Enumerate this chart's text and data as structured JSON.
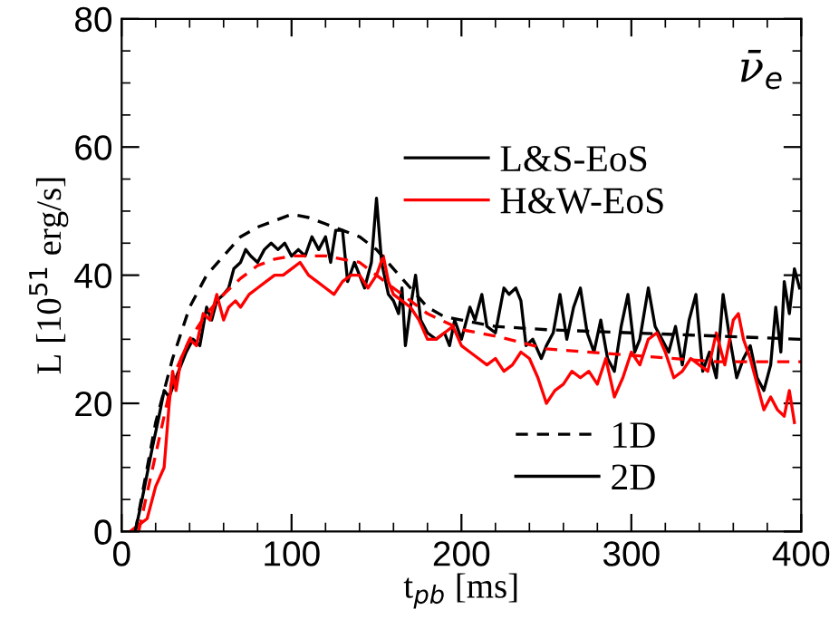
{
  "chart_data": {
    "type": "line",
    "xlabel": "t$_{pb}$ [ms]",
    "ylabel": "L [10$^{51}$ erg/s]",
    "xlim": [
      0,
      400
    ],
    "xticks": [
      0,
      100,
      200,
      300,
      400
    ],
    "ylim": [
      0,
      80
    ],
    "yticks": [
      0,
      20,
      40,
      60,
      80
    ],
    "grid": false,
    "legend": "right",
    "annotations": [
      "ν̄$_{e}$",
      "1D",
      "2D"
    ],
    "series": [
      {
        "name": "L&S-EoS",
        "color": "#000000",
        "line_style": "solid",
        "x": [
          8,
          12,
          18,
          22,
          25,
          28,
          32,
          38,
          42,
          46,
          50,
          53,
          56,
          60,
          63,
          66,
          70,
          73,
          76,
          80,
          84,
          88,
          92,
          96,
          100,
          104,
          108,
          112,
          116,
          120,
          123,
          126,
          130,
          133,
          137,
          140,
          143,
          147,
          150,
          153,
          157,
          160,
          163,
          165,
          167,
          170,
          173,
          176,
          180,
          185,
          190,
          193,
          196,
          200,
          205,
          208,
          212,
          215,
          220,
          225,
          228,
          232,
          235,
          238,
          242,
          247,
          250,
          254,
          258,
          262,
          266,
          270,
          274,
          278,
          282,
          286,
          290,
          294,
          298,
          302,
          305,
          310,
          314,
          318,
          322,
          326,
          330,
          334,
          338,
          342,
          346,
          350,
          354,
          358,
          362,
          366,
          370,
          374,
          378,
          382,
          385,
          388,
          390,
          393,
          396,
          399
        ],
        "values": [
          0,
          5,
          13,
          18,
          22,
          21,
          24,
          28,
          30,
          29,
          35,
          33,
          36,
          37,
          38,
          41,
          42,
          44,
          43,
          42,
          44,
          45,
          44,
          45,
          43,
          44,
          43,
          46,
          44,
          46,
          42,
          47,
          47,
          39,
          42,
          40,
          38,
          42,
          52,
          42,
          37,
          36,
          34,
          38,
          29,
          35,
          40,
          33,
          31,
          30,
          31,
          29,
          33,
          30,
          35,
          33,
          37,
          32,
          31,
          38,
          37,
          38,
          36,
          29,
          30,
          27,
          29,
          31,
          37,
          30,
          35,
          38,
          31,
          28,
          33,
          27,
          25,
          32,
          37,
          28,
          30,
          38,
          32,
          30,
          28,
          32,
          26,
          33,
          37,
          25,
          28,
          24,
          37,
          30,
          24,
          27,
          29,
          24,
          22,
          26,
          35,
          28,
          39,
          34,
          41,
          38
        ]
      },
      {
        "name": "H&W-EoS",
        "color": "#ff0000",
        "line_style": "solid",
        "x": [
          5,
          10,
          15,
          20,
          25,
          28,
          30,
          32,
          35,
          40,
          44,
          48,
          52,
          56,
          60,
          63,
          67,
          70,
          75,
          80,
          85,
          90,
          95,
          100,
          105,
          110,
          115,
          120,
          125,
          130,
          135,
          140,
          145,
          150,
          154,
          157,
          160,
          165,
          170,
          175,
          180,
          185,
          190,
          195,
          200,
          205,
          210,
          215,
          220,
          225,
          230,
          235,
          240,
          245,
          250,
          255,
          260,
          265,
          270,
          275,
          280,
          285,
          290,
          295,
          300,
          305,
          310,
          315,
          320,
          325,
          330,
          335,
          340,
          345,
          350,
          355,
          360,
          363,
          366,
          370,
          375,
          378,
          382,
          386,
          390,
          393,
          396
        ],
        "values": [
          0,
          1,
          2,
          7,
          10,
          20,
          25,
          22,
          27,
          30,
          29,
          34,
          33,
          37,
          33,
          35,
          36,
          35,
          37,
          38,
          39,
          40,
          40,
          41,
          42,
          40,
          39,
          38,
          37,
          39,
          40,
          40,
          38,
          40,
          43,
          39,
          37,
          36,
          35,
          33,
          30,
          30,
          31,
          32,
          29,
          28,
          27,
          26,
          27,
          25,
          26,
          28,
          27,
          24,
          20,
          22,
          23,
          25,
          24,
          25,
          23,
          27,
          21,
          24,
          28,
          26,
          30,
          31,
          28,
          24,
          25,
          27,
          26,
          25,
          31,
          26,
          33,
          34,
          30,
          27,
          22,
          19,
          21,
          19,
          18,
          22,
          17
        ]
      },
      {
        "color": "#000000",
        "line_style": "dashed",
        "x": [
          8,
          20,
          30,
          40,
          50,
          60,
          70,
          80,
          90,
          100,
          110,
          120,
          130,
          140,
          150,
          160,
          170,
          180,
          190,
          200,
          220,
          250,
          300,
          350,
          400
        ],
        "values": [
          0,
          17,
          27,
          35,
          40,
          43,
          46,
          47.5,
          48.5,
          49.5,
          49,
          48,
          47,
          46,
          44,
          41,
          38,
          35,
          33.5,
          33,
          32,
          31.5,
          31,
          30.5,
          30
        ]
      },
      {
        "color": "#ff0000",
        "line_style": "dashed",
        "x": [
          10,
          20,
          30,
          40,
          50,
          60,
          70,
          80,
          90,
          100,
          120,
          140,
          150,
          160,
          170,
          180,
          200,
          220,
          250,
          300,
          350,
          400
        ],
        "values": [
          0,
          12,
          24,
          30,
          34,
          37,
          39.5,
          41.5,
          42.5,
          43,
          43,
          42,
          40,
          38,
          36,
          34,
          31.5,
          30.5,
          28.5,
          27.5,
          26.5,
          26.5
        ]
      }
    ]
  }
}
